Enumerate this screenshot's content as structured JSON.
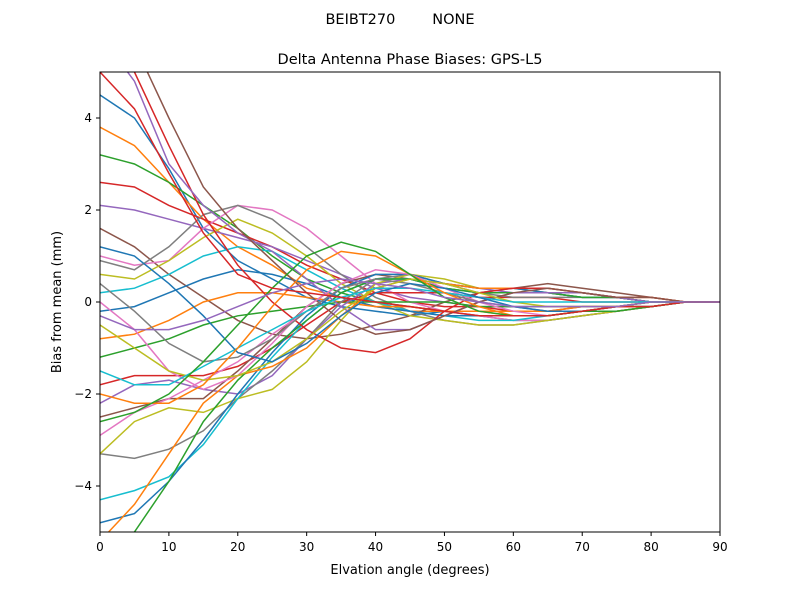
{
  "figure": {
    "suptitle": "BEIBT270        NONE"
  },
  "chart_data": {
    "type": "line",
    "title": "Delta Antenna Phase Biases: GPS-L5",
    "xlabel": "Elvation angle (degrees)",
    "ylabel": "Bias from mean (mm)",
    "xlim": [
      0,
      90
    ],
    "ylim": [
      -5,
      5
    ],
    "xticks": [
      0,
      10,
      20,
      30,
      40,
      50,
      60,
      70,
      80,
      90
    ],
    "yticks": [
      -4,
      -2,
      0,
      2,
      4
    ],
    "grid": false,
    "legend": "none",
    "x": [
      0,
      5,
      10,
      15,
      20,
      25,
      30,
      35,
      40,
      45,
      50,
      55,
      60,
      65,
      70,
      75,
      80,
      85,
      90
    ],
    "series": [
      {
        "values": [
          4.5,
          4.0,
          2.9,
          1.6,
          0.9,
          0.5,
          0.1,
          -0.1,
          -0.2,
          -0.3,
          -0.2,
          -0.3,
          -0.4,
          -0.4,
          -0.3,
          -0.2,
          -0.1,
          0.0,
          0.0
        ]
      },
      {
        "values": [
          3.8,
          3.4,
          2.6,
          1.8,
          1.2,
          0.8,
          0.3,
          0.1,
          -0.1,
          -0.2,
          -0.2,
          -0.2,
          -0.3,
          -0.3,
          -0.2,
          -0.2,
          -0.1,
          0.0,
          0.0
        ]
      },
      {
        "values": [
          3.2,
          3.0,
          2.6,
          2.1,
          1.6,
          1.0,
          0.5,
          0.2,
          0.0,
          -0.1,
          -0.2,
          -0.2,
          -0.2,
          -0.2,
          -0.2,
          -0.1,
          -0.1,
          0.0,
          0.0
        ]
      },
      {
        "values": [
          2.6,
          2.5,
          2.1,
          1.8,
          1.5,
          1.2,
          0.8,
          0.5,
          0.2,
          0.0,
          -0.1,
          -0.1,
          -0.2,
          -0.2,
          -0.1,
          -0.1,
          0.0,
          0.0,
          0.0
        ]
      },
      {
        "values": [
          2.1,
          2.0,
          1.8,
          1.6,
          1.4,
          1.2,
          0.9,
          0.6,
          0.3,
          0.1,
          0.0,
          -0.1,
          -0.1,
          -0.1,
          -0.1,
          -0.1,
          0.0,
          0.0,
          0.0
        ]
      },
      {
        "values": [
          1.6,
          1.2,
          0.6,
          0.1,
          -0.4,
          -0.7,
          -0.8,
          -0.7,
          -0.5,
          -0.3,
          0.0,
          0.2,
          0.3,
          0.4,
          0.3,
          0.2,
          0.1,
          0.0,
          0.0
        ]
      },
      {
        "values": [
          1.0,
          0.8,
          0.9,
          1.6,
          2.1,
          2.0,
          1.6,
          1.0,
          0.4,
          0.0,
          -0.2,
          -0.3,
          -0.4,
          -0.4,
          -0.3,
          -0.2,
          -0.1,
          0.0,
          0.0
        ]
      },
      {
        "values": [
          0.9,
          0.7,
          1.2,
          1.9,
          2.1,
          1.8,
          1.2,
          0.6,
          0.1,
          -0.2,
          -0.4,
          -0.5,
          -0.5,
          -0.4,
          -0.3,
          -0.2,
          -0.1,
          0.0,
          0.0
        ]
      },
      {
        "values": [
          0.6,
          0.5,
          0.9,
          1.4,
          1.8,
          1.5,
          1.0,
          0.4,
          0.0,
          -0.3,
          -0.4,
          -0.5,
          -0.5,
          -0.4,
          -0.3,
          -0.2,
          -0.1,
          0.0,
          0.0
        ]
      },
      {
        "values": [
          0.2,
          0.3,
          0.6,
          1.0,
          1.2,
          1.1,
          0.7,
          0.3,
          0.0,
          -0.2,
          -0.3,
          -0.4,
          -0.4,
          -0.3,
          -0.2,
          -0.1,
          -0.1,
          0.0,
          0.0
        ]
      },
      {
        "values": [
          -0.2,
          -0.1,
          0.2,
          0.5,
          0.7,
          0.6,
          0.4,
          0.1,
          -0.1,
          -0.2,
          -0.3,
          -0.3,
          -0.3,
          -0.3,
          -0.2,
          -0.1,
          -0.1,
          0.0,
          0.0
        ]
      },
      {
        "values": [
          -0.8,
          -0.7,
          -0.4,
          0.0,
          0.2,
          0.2,
          0.1,
          0.0,
          -0.1,
          -0.1,
          -0.2,
          -0.2,
          -0.2,
          -0.2,
          -0.1,
          -0.1,
          0.0,
          0.0,
          0.0
        ]
      },
      {
        "values": [
          -1.2,
          -1.0,
          -0.8,
          -0.5,
          -0.3,
          -0.2,
          -0.1,
          0.0,
          0.0,
          0.0,
          0.0,
          -0.1,
          -0.1,
          -0.1,
          -0.1,
          -0.1,
          0.0,
          0.0,
          0.0
        ]
      },
      {
        "values": [
          -1.8,
          -1.6,
          -1.6,
          -1.6,
          -1.4,
          -1.0,
          -0.5,
          0.0,
          0.2,
          0.2,
          0.2,
          0.1,
          0.1,
          0.1,
          0.0,
          0.0,
          0.0,
          0.0,
          0.0
        ]
      },
      {
        "values": [
          -2.2,
          -1.8,
          -1.7,
          -1.9,
          -2.0,
          -1.6,
          -0.8,
          -0.1,
          0.4,
          0.5,
          0.4,
          0.3,
          0.2,
          0.2,
          0.1,
          0.1,
          0.0,
          0.0,
          0.0
        ]
      },
      {
        "values": [
          -2.5,
          -2.3,
          -2.1,
          -2.1,
          -1.5,
          -0.8,
          -0.1,
          0.4,
          0.6,
          0.5,
          0.3,
          0.2,
          0.2,
          0.2,
          0.1,
          0.1,
          0.0,
          0.0,
          0.0
        ]
      },
      {
        "values": [
          -2.9,
          -2.4,
          -2.1,
          -1.7,
          -1.3,
          -0.7,
          -0.2,
          0.3,
          0.5,
          0.5,
          0.4,
          0.3,
          0.3,
          0.2,
          0.2,
          0.1,
          0.0,
          0.0,
          0.0
        ]
      },
      {
        "values": [
          -3.3,
          -3.4,
          -3.2,
          -2.8,
          -2.1,
          -1.5,
          -0.8,
          0.0,
          0.5,
          0.6,
          0.4,
          0.2,
          0.1,
          0.1,
          0.1,
          0.1,
          0.0,
          0.0,
          0.0
        ]
      },
      {
        "values": [
          -3.3,
          -2.6,
          -2.3,
          -2.4,
          -2.1,
          -1.9,
          -1.3,
          -0.4,
          0.4,
          0.6,
          0.5,
          0.3,
          0.3,
          0.2,
          0.2,
          0.1,
          0.0,
          0.0,
          0.0
        ]
      },
      {
        "values": [
          -4.3,
          -4.1,
          -3.8,
          -3.1,
          -2.1,
          -1.2,
          -0.4,
          0.2,
          0.5,
          0.5,
          0.3,
          0.2,
          0.2,
          0.2,
          0.1,
          0.1,
          0.0,
          0.0,
          0.0
        ]
      },
      {
        "values": [
          -4.8,
          -4.6,
          -3.9,
          -3.0,
          -2.0,
          -1.1,
          -0.3,
          0.3,
          0.6,
          0.6,
          0.4,
          0.3,
          0.3,
          0.2,
          0.2,
          0.1,
          0.0,
          0.0,
          0.0
        ]
      },
      {
        "values": [
          -5.2,
          -4.4,
          -3.3,
          -2.2,
          -1.6,
          -1.4,
          -1.0,
          -0.3,
          0.3,
          0.5,
          0.4,
          0.3,
          0.3,
          0.3,
          0.2,
          0.1,
          0.1,
          0.0,
          0.0
        ]
      },
      {
        "values": [
          -5.6,
          -5.0,
          -3.9,
          -2.6,
          -1.7,
          -1.0,
          -0.4,
          0.2,
          0.5,
          0.5,
          0.3,
          0.2,
          0.2,
          0.2,
          0.1,
          0.1,
          0.0,
          0.0,
          0.0
        ]
      },
      {
        "values": [
          5.5,
          5.0,
          3.4,
          1.9,
          0.8,
          0.0,
          -0.6,
          -1.0,
          -1.1,
          -0.8,
          -0.2,
          0.2,
          0.3,
          0.3,
          0.2,
          0.1,
          0.1,
          0.0,
          0.0
        ]
      },
      {
        "values": [
          5.8,
          4.8,
          3.0,
          2.1,
          1.5,
          1.1,
          0.5,
          -0.1,
          -0.6,
          -0.6,
          -0.3,
          0.0,
          0.2,
          0.2,
          0.2,
          0.1,
          0.0,
          0.0,
          0.0
        ]
      },
      {
        "values": [
          6.2,
          5.6,
          4.0,
          2.5,
          1.6,
          0.9,
          0.2,
          -0.4,
          -0.7,
          -0.6,
          -0.3,
          0.0,
          0.2,
          0.3,
          0.2,
          0.1,
          0.1,
          0.0,
          0.0
        ]
      },
      {
        "values": [
          0.0,
          -0.6,
          -1.5,
          -1.9,
          -1.6,
          -0.9,
          -0.1,
          0.4,
          0.7,
          0.6,
          0.3,
          0.0,
          -0.2,
          -0.3,
          -0.2,
          -0.1,
          -0.1,
          0.0,
          0.0
        ]
      },
      {
        "values": [
          0.4,
          -0.2,
          -0.9,
          -1.3,
          -1.2,
          -0.8,
          -0.2,
          0.3,
          0.5,
          0.4,
          0.2,
          0.0,
          -0.1,
          -0.2,
          -0.2,
          -0.1,
          0.0,
          0.0,
          0.0
        ]
      },
      {
        "values": [
          -0.5,
          -1.0,
          -1.5,
          -1.7,
          -1.6,
          -1.3,
          -0.8,
          -0.2,
          0.3,
          0.5,
          0.4,
          0.2,
          0.0,
          -0.1,
          -0.1,
          -0.1,
          0.0,
          0.0,
          0.0
        ]
      },
      {
        "values": [
          -1.5,
          -1.8,
          -1.8,
          -1.4,
          -1.0,
          -0.6,
          -0.2,
          0.1,
          0.3,
          0.3,
          0.2,
          0.1,
          0.0,
          0.0,
          0.0,
          0.0,
          0.0,
          0.0,
          0.0
        ]
      },
      {
        "values": [
          1.2,
          1.0,
          0.4,
          -0.3,
          -1.1,
          -1.3,
          -0.9,
          -0.3,
          0.2,
          0.4,
          0.3,
          0.1,
          -0.1,
          -0.2,
          -0.2,
          -0.1,
          -0.1,
          0.0,
          0.0
        ]
      },
      {
        "values": [
          -2.0,
          -2.2,
          -2.2,
          -1.8,
          -1.0,
          -0.1,
          0.7,
          1.1,
          1.0,
          0.6,
          0.2,
          -0.1,
          -0.3,
          -0.3,
          -0.2,
          -0.1,
          -0.1,
          0.0,
          0.0
        ]
      },
      {
        "values": [
          -2.6,
          -2.4,
          -2.0,
          -1.3,
          -0.5,
          0.3,
          1.0,
          1.3,
          1.1,
          0.6,
          0.1,
          -0.2,
          -0.3,
          -0.3,
          -0.2,
          -0.2,
          -0.1,
          0.0,
          0.0
        ]
      },
      {
        "values": [
          5.0,
          4.2,
          2.8,
          1.5,
          0.6,
          0.3,
          0.2,
          0.1,
          0.0,
          -0.1,
          -0.2,
          -0.3,
          -0.3,
          -0.3,
          -0.2,
          -0.1,
          -0.1,
          0.0,
          0.0
        ]
      },
      {
        "values": [
          -0.3,
          -0.6,
          -0.6,
          -0.4,
          -0.1,
          0.2,
          0.4,
          0.5,
          0.4,
          0.3,
          0.1,
          0.0,
          -0.1,
          -0.1,
          -0.1,
          -0.1,
          0.0,
          0.0,
          0.0
        ]
      }
    ]
  }
}
